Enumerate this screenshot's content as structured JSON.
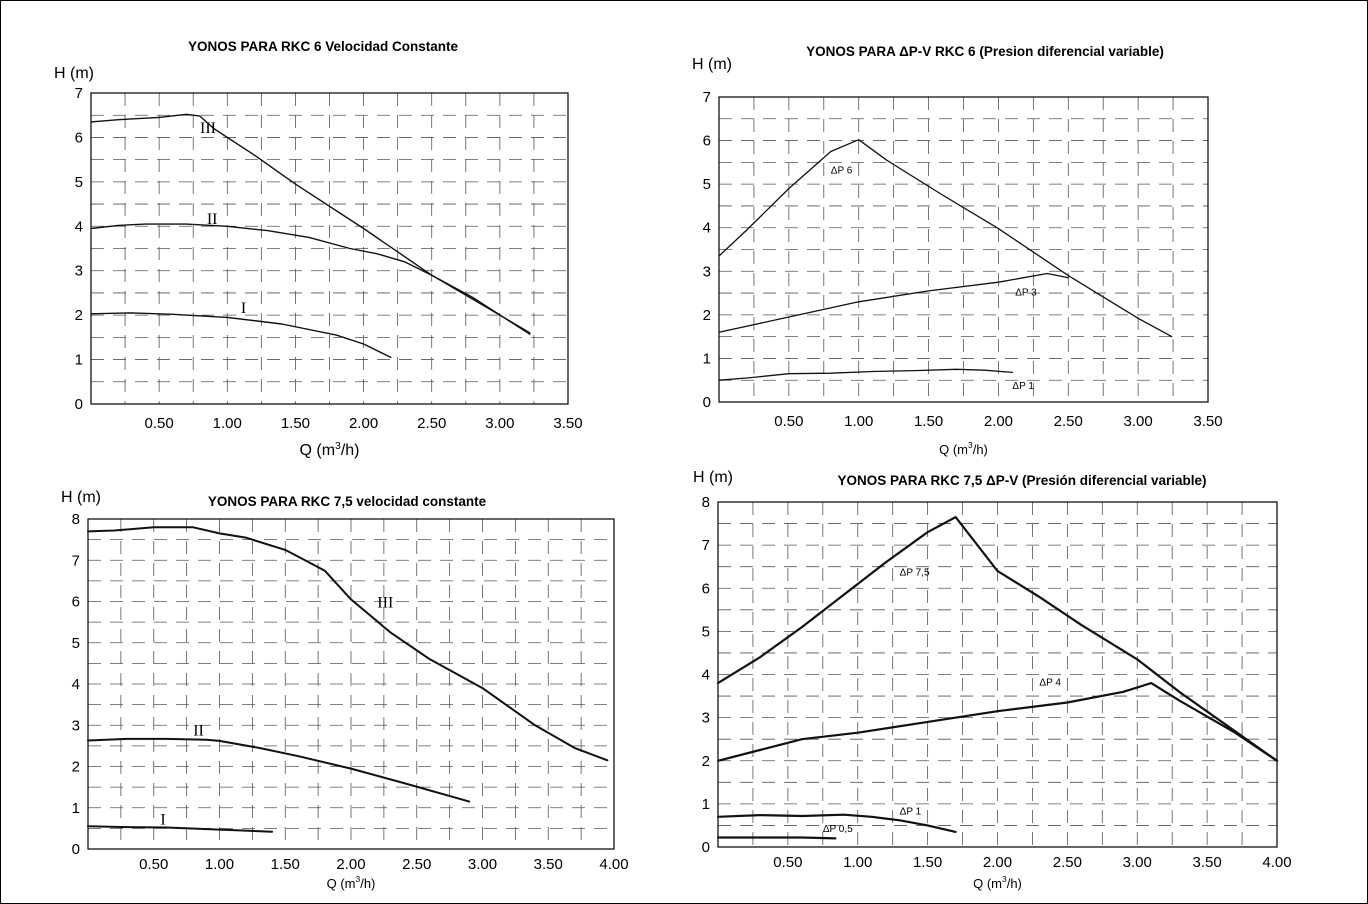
{
  "chart_data": [
    {
      "type": "line",
      "title": "YONOS PARA RKC 6 Velocidad Constante",
      "ylabel": "H (m)",
      "xlabel_main": "Q (m",
      "xlabel_sup": "3",
      "xlabel_tail": "/h)",
      "xlim": [
        0,
        3.5
      ],
      "ylim": [
        0,
        7
      ],
      "xticks": [
        "0.50",
        "1.00",
        "1.50",
        "2.00",
        "2.50",
        "3.00",
        "3.50"
      ],
      "yticks": [
        "0",
        "1",
        "2",
        "3",
        "4",
        "5",
        "6",
        "7"
      ],
      "series": [
        {
          "name": "III",
          "label_at": [
            0.8,
            6.1
          ],
          "x": [
            0,
            0.2,
            0.5,
            0.7,
            0.8,
            0.9,
            1.2,
            1.5,
            2.0,
            2.5,
            3.0,
            3.22
          ],
          "y": [
            6.35,
            6.4,
            6.45,
            6.52,
            6.48,
            6.2,
            5.6,
            4.95,
            3.95,
            2.9,
            2.0,
            1.6
          ]
        },
        {
          "name": "II",
          "label_at": [
            0.85,
            4.05
          ],
          "x": [
            0,
            0.2,
            0.4,
            0.7,
            1.0,
            1.3,
            1.6,
            1.9,
            2.1,
            2.3,
            2.5,
            2.8,
            3.22
          ],
          "y": [
            3.95,
            4.02,
            4.05,
            4.05,
            4.0,
            3.9,
            3.75,
            3.5,
            3.38,
            3.2,
            2.9,
            2.4,
            1.57
          ]
        },
        {
          "name": "I",
          "label_at": [
            1.1,
            2.05
          ],
          "x": [
            0,
            0.3,
            0.6,
            1.0,
            1.4,
            1.8,
            2.0,
            2.2
          ],
          "y": [
            2.03,
            2.05,
            2.02,
            1.95,
            1.8,
            1.55,
            1.35,
            1.05
          ]
        }
      ]
    },
    {
      "type": "line",
      "title": "YONOS PARA ΔP-V RKC 6 (Presion diferencial variable)",
      "ylabel": "H (m)",
      "xlabel_main": "Q (m",
      "xlabel_sup": "3",
      "xlabel_tail": "/h)",
      "xlim": [
        0,
        3.5
      ],
      "ylim": [
        0,
        7
      ],
      "xticks": [
        "0.50",
        "1.00",
        "1.50",
        "2.00",
        "2.50",
        "3.00",
        "3.50"
      ],
      "yticks": [
        "0",
        "1",
        "2",
        "3",
        "4",
        "5",
        "6",
        "7"
      ],
      "series": [
        {
          "name": "ΔP 6",
          "label_at": [
            0.8,
            5.25
          ],
          "x": [
            0,
            0.2,
            0.5,
            0.8,
            1.0,
            1.2,
            1.6,
            2.0,
            2.5,
            3.0,
            3.24
          ],
          "y": [
            3.35,
            3.95,
            4.9,
            5.75,
            6.02,
            5.55,
            4.75,
            3.98,
            2.9,
            1.92,
            1.5
          ]
        },
        {
          "name": "ΔP 3",
          "label_at": [
            2.12,
            2.45
          ],
          "x": [
            0,
            0.5,
            1.0,
            1.5,
            2.0,
            2.35,
            2.5
          ],
          "y": [
            1.6,
            1.95,
            2.3,
            2.55,
            2.75,
            2.95,
            2.85
          ]
        },
        {
          "name": "ΔP 1",
          "label_at": [
            2.1,
            0.3
          ],
          "x": [
            0,
            0.2,
            0.5,
            0.8,
            1.1,
            1.4,
            1.7,
            1.9,
            2.1
          ],
          "y": [
            0.5,
            0.55,
            0.65,
            0.66,
            0.7,
            0.72,
            0.75,
            0.73,
            0.68
          ]
        }
      ]
    },
    {
      "type": "line",
      "title": "YONOS PARA RKC 7,5 velocidad constante",
      "ylabel": "H (m)",
      "xlabel_main": "Q (m",
      "xlabel_sup": "3",
      "xlabel_tail": "/h)",
      "xlim": [
        0,
        4.0
      ],
      "ylim": [
        0,
        8
      ],
      "xticks": [
        "0.50",
        "1.00",
        "1.50",
        "2.00",
        "2.50",
        "3.00",
        "3.50",
        "4.00"
      ],
      "yticks": [
        "0",
        "1",
        "2",
        "3",
        "4",
        "5",
        "6",
        "7",
        "8"
      ],
      "series": [
        {
          "name": "III",
          "label_at": [
            2.2,
            5.85
          ],
          "x": [
            0,
            0.2,
            0.5,
            0.8,
            1.0,
            1.2,
            1.5,
            1.8,
            2.0,
            2.3,
            2.6,
            3.0,
            3.4,
            3.7,
            3.95
          ],
          "y": [
            7.7,
            7.72,
            7.8,
            7.8,
            7.65,
            7.55,
            7.25,
            6.75,
            6.05,
            5.25,
            4.6,
            3.9,
            3.0,
            2.45,
            2.15
          ]
        },
        {
          "name": "II",
          "label_at": [
            0.8,
            2.75
          ],
          "x": [
            0,
            0.3,
            0.6,
            0.9,
            1.0,
            1.3,
            1.6,
            2.0,
            2.4,
            2.9
          ],
          "y": [
            2.63,
            2.67,
            2.67,
            2.65,
            2.62,
            2.45,
            2.25,
            1.95,
            1.6,
            1.15
          ]
        },
        {
          "name": "I",
          "label_at": [
            0.55,
            0.6
          ],
          "x": [
            0,
            0.3,
            0.6,
            1.0,
            1.4
          ],
          "y": [
            0.55,
            0.53,
            0.52,
            0.47,
            0.42
          ]
        }
      ]
    },
    {
      "type": "line",
      "title": "YONOS PARA RKC 7,5 ΔP-V (Presión diferencial variable)",
      "ylabel": "H (m)",
      "xlabel_main": "Q (m",
      "xlabel_sup": "3",
      "xlabel_tail": "/h)",
      "xlim": [
        0,
        4.0
      ],
      "ylim": [
        0,
        8
      ],
      "xticks": [
        "0.50",
        "1.00",
        "1.50",
        "2.00",
        "2.50",
        "3.00",
        "3.50",
        "4.00"
      ],
      "yticks": [
        "0",
        "1",
        "2",
        "3",
        "4",
        "5",
        "6",
        "7",
        "8"
      ],
      "series": [
        {
          "name": "ΔP 7,5",
          "label_at": [
            1.3,
            6.3
          ],
          "x": [
            0,
            0.3,
            0.6,
            0.9,
            1.2,
            1.5,
            1.7,
            2.0,
            2.3,
            2.6,
            3.0,
            3.3,
            4.0
          ],
          "y": [
            3.8,
            4.4,
            5.1,
            5.85,
            6.6,
            7.3,
            7.65,
            6.4,
            5.8,
            5.15,
            4.35,
            3.6,
            2.0
          ]
        },
        {
          "name": "ΔP 4",
          "label_at": [
            2.3,
            3.75
          ],
          "x": [
            0,
            0.3,
            0.6,
            1.0,
            1.5,
            2.0,
            2.5,
            2.9,
            3.1,
            3.3,
            3.7,
            4.0
          ],
          "y": [
            2.0,
            2.25,
            2.5,
            2.65,
            2.9,
            3.15,
            3.35,
            3.6,
            3.8,
            3.4,
            2.65,
            2.0
          ]
        },
        {
          "name": "ΔP 1",
          "label_at": [
            1.3,
            0.75
          ],
          "x": [
            0,
            0.3,
            0.6,
            0.9,
            1.1,
            1.3,
            1.5,
            1.7
          ],
          "y": [
            0.7,
            0.74,
            0.72,
            0.75,
            0.7,
            0.62,
            0.5,
            0.35
          ]
        },
        {
          "name": "ΔP 0,5",
          "label_at": [
            0.75,
            0.35
          ],
          "x": [
            0,
            0.3,
            0.6,
            0.84
          ],
          "y": [
            0.22,
            0.22,
            0.22,
            0.2
          ]
        }
      ]
    }
  ]
}
